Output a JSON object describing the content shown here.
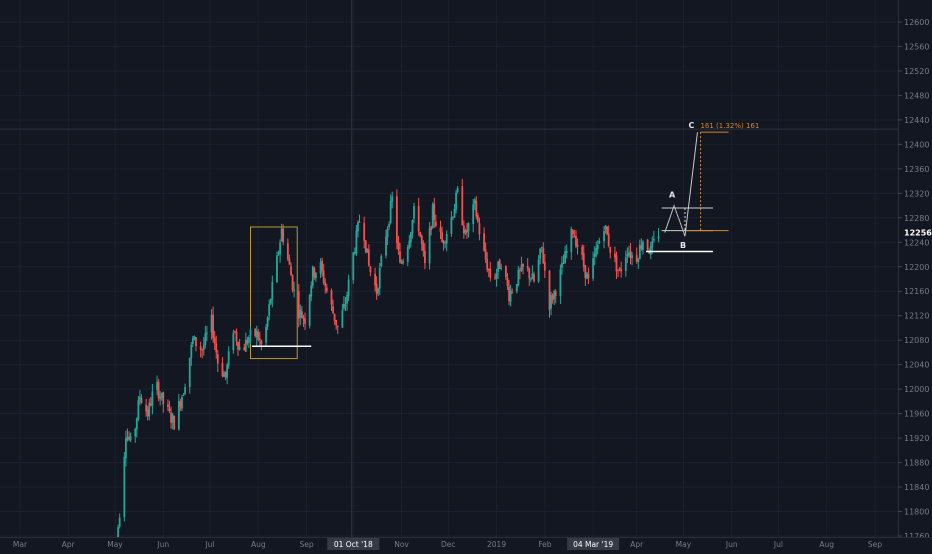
{
  "chart_data": {
    "type": "candlestick",
    "y_axis": {
      "position": "right",
      "ylim": [
        11720,
        12640
      ],
      "ticks": [
        11760,
        11800,
        11840,
        11880,
        11920,
        11960,
        12000,
        12040,
        12080,
        12120,
        12160,
        12200,
        12240,
        12280,
        12320,
        12360,
        12400,
        12440,
        12480,
        12520,
        12560,
        12600
      ]
    },
    "x_axis": {
      "xlim": [
        "2018-02-20",
        "2019-09-30"
      ],
      "ticks": [
        {
          "label": "Mar",
          "date": "2018-03-01"
        },
        {
          "label": "Apr",
          "date": "2018-04-01"
        },
        {
          "label": "May",
          "date": "2018-05-01"
        },
        {
          "label": "Jun",
          "date": "2018-06-01"
        },
        {
          "label": "Jul",
          "date": "2018-07-01"
        },
        {
          "label": "Aug",
          "date": "2018-08-01"
        },
        {
          "label": "Sep",
          "date": "2018-09-01"
        },
        {
          "label": "01 Oct '18",
          "date": "2018-10-01",
          "highlight": true
        },
        {
          "label": "Nov",
          "date": "2018-11-01"
        },
        {
          "label": "Dec",
          "date": "2018-12-01"
        },
        {
          "label": "2019",
          "date": "2019-01-01"
        },
        {
          "label": "Feb",
          "date": "2019-02-01"
        },
        {
          "label": "04 Mar '19",
          "date": "2019-03-04",
          "highlight": true
        },
        {
          "label": "Apr",
          "date": "2019-04-01"
        },
        {
          "label": "May",
          "date": "2019-05-01"
        },
        {
          "label": "Jun",
          "date": "2019-06-01"
        },
        {
          "label": "Jul",
          "date": "2019-07-01"
        },
        {
          "label": "Aug",
          "date": "2019-08-01"
        },
        {
          "label": "Sep",
          "date": "2019-09-01"
        }
      ]
    },
    "grid": true,
    "price_path": [
      [
        "2018-05-01",
        11730
      ],
      [
        "2018-05-04",
        11800
      ],
      [
        "2018-05-08",
        11930
      ],
      [
        "2018-05-12",
        11905
      ],
      [
        "2018-05-17",
        11990
      ],
      [
        "2018-05-22",
        11960
      ],
      [
        "2018-05-27",
        12010
      ],
      [
        "2018-06-02",
        11970
      ],
      [
        "2018-06-08",
        11945
      ],
      [
        "2018-06-14",
        12000
      ],
      [
        "2018-06-20",
        12080
      ],
      [
        "2018-06-26",
        12065
      ],
      [
        "2018-07-02",
        12110
      ],
      [
        "2018-07-06",
        12045
      ],
      [
        "2018-07-11",
        12020
      ],
      [
        "2018-07-16",
        12100
      ],
      [
        "2018-07-21",
        12060
      ],
      [
        "2018-07-26",
        12085
      ],
      [
        "2018-07-31",
        12090
      ],
      [
        "2018-08-04",
        12065
      ],
      [
        "2018-08-09",
        12150
      ],
      [
        "2018-08-13",
        12210
      ],
      [
        "2018-08-16",
        12260
      ],
      [
        "2018-08-21",
        12200
      ],
      [
        "2018-08-26",
        12130
      ],
      [
        "2018-08-31",
        12115
      ],
      [
        "2018-09-05",
        12190
      ],
      [
        "2018-09-10",
        12200
      ],
      [
        "2018-09-15",
        12150
      ],
      [
        "2018-09-21",
        12100
      ],
      [
        "2018-09-26",
        12140
      ],
      [
        "2018-10-01",
        12220
      ],
      [
        "2018-10-06",
        12290
      ],
      [
        "2018-10-11",
        12200
      ],
      [
        "2018-10-16",
        12160
      ],
      [
        "2018-10-21",
        12240
      ],
      [
        "2018-10-26",
        12310
      ],
      [
        "2018-10-31",
        12200
      ],
      [
        "2018-11-05",
        12240
      ],
      [
        "2018-11-10",
        12300
      ],
      [
        "2018-11-16",
        12200
      ],
      [
        "2018-11-21",
        12290
      ],
      [
        "2018-11-27",
        12240
      ],
      [
        "2018-12-02",
        12270
      ],
      [
        "2018-12-07",
        12320
      ],
      [
        "2018-12-12",
        12250
      ],
      [
        "2018-12-18",
        12300
      ],
      [
        "2018-12-23",
        12230
      ],
      [
        "2018-12-29",
        12175
      ],
      [
        "2019-01-04",
        12210
      ],
      [
        "2019-01-09",
        12155
      ],
      [
        "2019-01-14",
        12180
      ],
      [
        "2019-01-19",
        12200
      ],
      [
        "2019-01-25",
        12175
      ],
      [
        "2019-01-30",
        12230
      ],
      [
        "2019-02-04",
        12140
      ],
      [
        "2019-02-09",
        12170
      ],
      [
        "2019-02-14",
        12215
      ],
      [
        "2019-02-19",
        12260
      ],
      [
        "2019-02-24",
        12220
      ],
      [
        "2019-03-01",
        12175
      ],
      [
        "2019-03-06",
        12225
      ],
      [
        "2019-03-11",
        12270
      ],
      [
        "2019-03-16",
        12220
      ],
      [
        "2019-03-21",
        12190
      ],
      [
        "2019-03-26",
        12230
      ],
      [
        "2019-03-31",
        12210
      ],
      [
        "2019-04-05",
        12245
      ],
      [
        "2019-04-10",
        12225
      ],
      [
        "2019-04-15",
        12256
      ]
    ],
    "last_price": {
      "value": 12256,
      "label": "12256"
    },
    "annotations": {
      "box": {
        "x0": "2018-07-27",
        "x1": "2018-08-26",
        "y0": 12050,
        "y1": 12265,
        "color": "#b99b2b"
      },
      "support_line_1": {
        "x0": "2018-07-28",
        "x1": "2018-09-04",
        "y": 12070,
        "color": "#ffffff"
      },
      "support_line_2": {
        "x0": "2019-04-07",
        "x1": "2019-05-20",
        "y": 12225,
        "color": "#ffffff"
      },
      "abc_pattern": {
        "points": [
          {
            "label": "",
            "date": "2019-04-19",
            "value": 12256
          },
          {
            "label": "A",
            "date": "2019-04-25",
            "value": 12300
          },
          {
            "label": "B",
            "date": "2019-05-02",
            "value": 12250
          },
          {
            "label": "C",
            "date": "2019-05-10",
            "value": 12420
          }
        ],
        "color": "#c8c8c8"
      },
      "level_lines": [
        {
          "x0": "2019-04-17",
          "x1": "2019-05-20",
          "y": 12296,
          "color": "#cfcfcf"
        },
        {
          "x0": "2019-04-17",
          "x1": "2019-05-20",
          "y": 12259,
          "color": "#cfcfcf"
        },
        {
          "x0": "2019-05-02",
          "x1": "2019-05-30",
          "y": 12259,
          "color": "#d4882a"
        },
        {
          "x0": "2019-05-12",
          "x1": "2019-05-30",
          "y": 12420,
          "color": "#d4882a"
        }
      ],
      "projection_label": "161 (1.32%) 161",
      "crosshair": {
        "date": "2018-09-30",
        "value": 12425
      }
    },
    "colors": {
      "background": "#131722",
      "up": "#26a69a",
      "down": "#ef5350",
      "axis_text": "#787b86",
      "grid": "#1c2030",
      "accent": "#d4882a"
    }
  }
}
